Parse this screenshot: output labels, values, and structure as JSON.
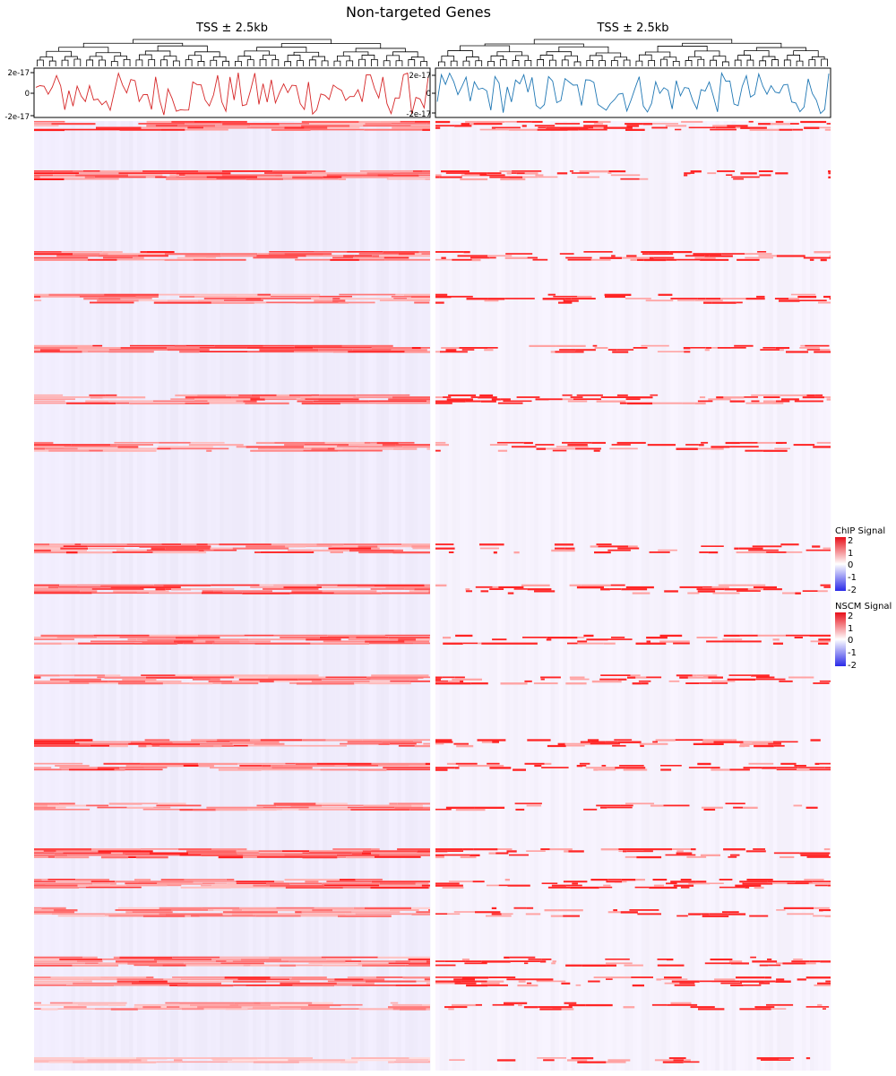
{
  "title": "Non-targeted Genes",
  "chart_data": [
    {
      "type": "heatmap",
      "panel": "left",
      "column_title": "TSS ± 2.5kb",
      "color_scale": {
        "name": "ChIP Signal",
        "breaks": [
          2,
          1,
          0,
          -1,
          -2
        ],
        "colors": {
          "high": "#e8101a",
          "mid": "#ffffff",
          "low": "#2a2ae8"
        }
      },
      "column_profile": {
        "type": "line",
        "color": "#d62728",
        "yticks": [
          "2e-17",
          "0",
          "-2e-17"
        ],
        "ylim": [
          -2e-17,
          2e-17
        ]
      },
      "dendrogram": "columns clustered",
      "row_bands": [
        {
          "pos": 0.002,
          "intensity": 0.9,
          "rows": 3
        },
        {
          "pos": 0.054,
          "intensity": 0.95,
          "rows": 3
        },
        {
          "pos": 0.139,
          "intensity": 0.9,
          "rows": 3
        },
        {
          "pos": 0.184,
          "intensity": 0.8,
          "rows": 3
        },
        {
          "pos": 0.238,
          "intensity": 0.95,
          "rows": 2
        },
        {
          "pos": 0.29,
          "intensity": 0.85,
          "rows": 3
        },
        {
          "pos": 0.34,
          "intensity": 0.8,
          "rows": 3
        },
        {
          "pos": 0.447,
          "intensity": 0.9,
          "rows": 3
        },
        {
          "pos": 0.49,
          "intensity": 0.85,
          "rows": 3
        },
        {
          "pos": 0.543,
          "intensity": 0.8,
          "rows": 3
        },
        {
          "pos": 0.585,
          "intensity": 0.8,
          "rows": 3
        },
        {
          "pos": 0.653,
          "intensity": 0.95,
          "rows": 2
        },
        {
          "pos": 0.678,
          "intensity": 1.0,
          "rows": 2
        },
        {
          "pos": 0.72,
          "intensity": 0.7,
          "rows": 2
        },
        {
          "pos": 0.768,
          "intensity": 0.95,
          "rows": 3
        },
        {
          "pos": 0.8,
          "intensity": 0.9,
          "rows": 3
        },
        {
          "pos": 0.83,
          "intensity": 0.7,
          "rows": 3
        },
        {
          "pos": 0.882,
          "intensity": 0.85,
          "rows": 3
        },
        {
          "pos": 0.903,
          "intensity": 0.9,
          "rows": 3
        },
        {
          "pos": 0.93,
          "intensity": 0.6,
          "rows": 2
        },
        {
          "pos": 0.988,
          "intensity": 0.4,
          "rows": 1
        }
      ]
    },
    {
      "type": "heatmap",
      "panel": "right",
      "column_title": "TSS ± 2.5kb",
      "color_scale": {
        "name": "NSCM Signal",
        "breaks": [
          2,
          1,
          0,
          -1,
          -2
        ],
        "colors": {
          "high": "#e8101a",
          "mid": "#ffffff",
          "low": "#2a2ae8"
        }
      },
      "column_profile": {
        "type": "line",
        "color": "#1f77b4",
        "yticks": [
          "2e-17",
          "0",
          "-2e-17"
        ],
        "ylim": [
          -2e-17,
          2e-17
        ]
      },
      "dendrogram": "columns clustered"
    }
  ]
}
